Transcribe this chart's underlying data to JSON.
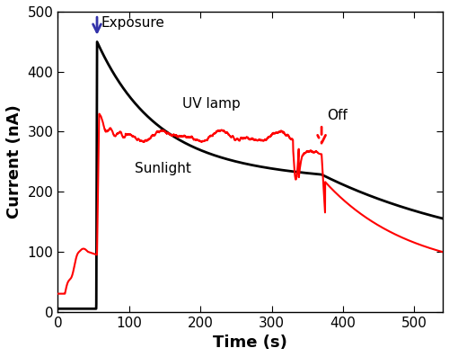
{
  "title": "",
  "xlabel": "Time (s)",
  "ylabel": "Current (nA)",
  "xlim": [
    0,
    540
  ],
  "ylim": [
    0,
    500
  ],
  "xticks": [
    0,
    100,
    200,
    300,
    400,
    500
  ],
  "yticks": [
    0,
    100,
    200,
    300,
    400,
    500
  ],
  "uv_label": "UV lamp",
  "sun_label": "Sunlight",
  "exposure_label": "Exposure",
  "off_label": "Off",
  "uv_color": "black",
  "sun_color": "red",
  "arrow_exposure_color": "#3333aa",
  "arrow_off_color": "red",
  "t_on": 55,
  "t_off": 370
}
